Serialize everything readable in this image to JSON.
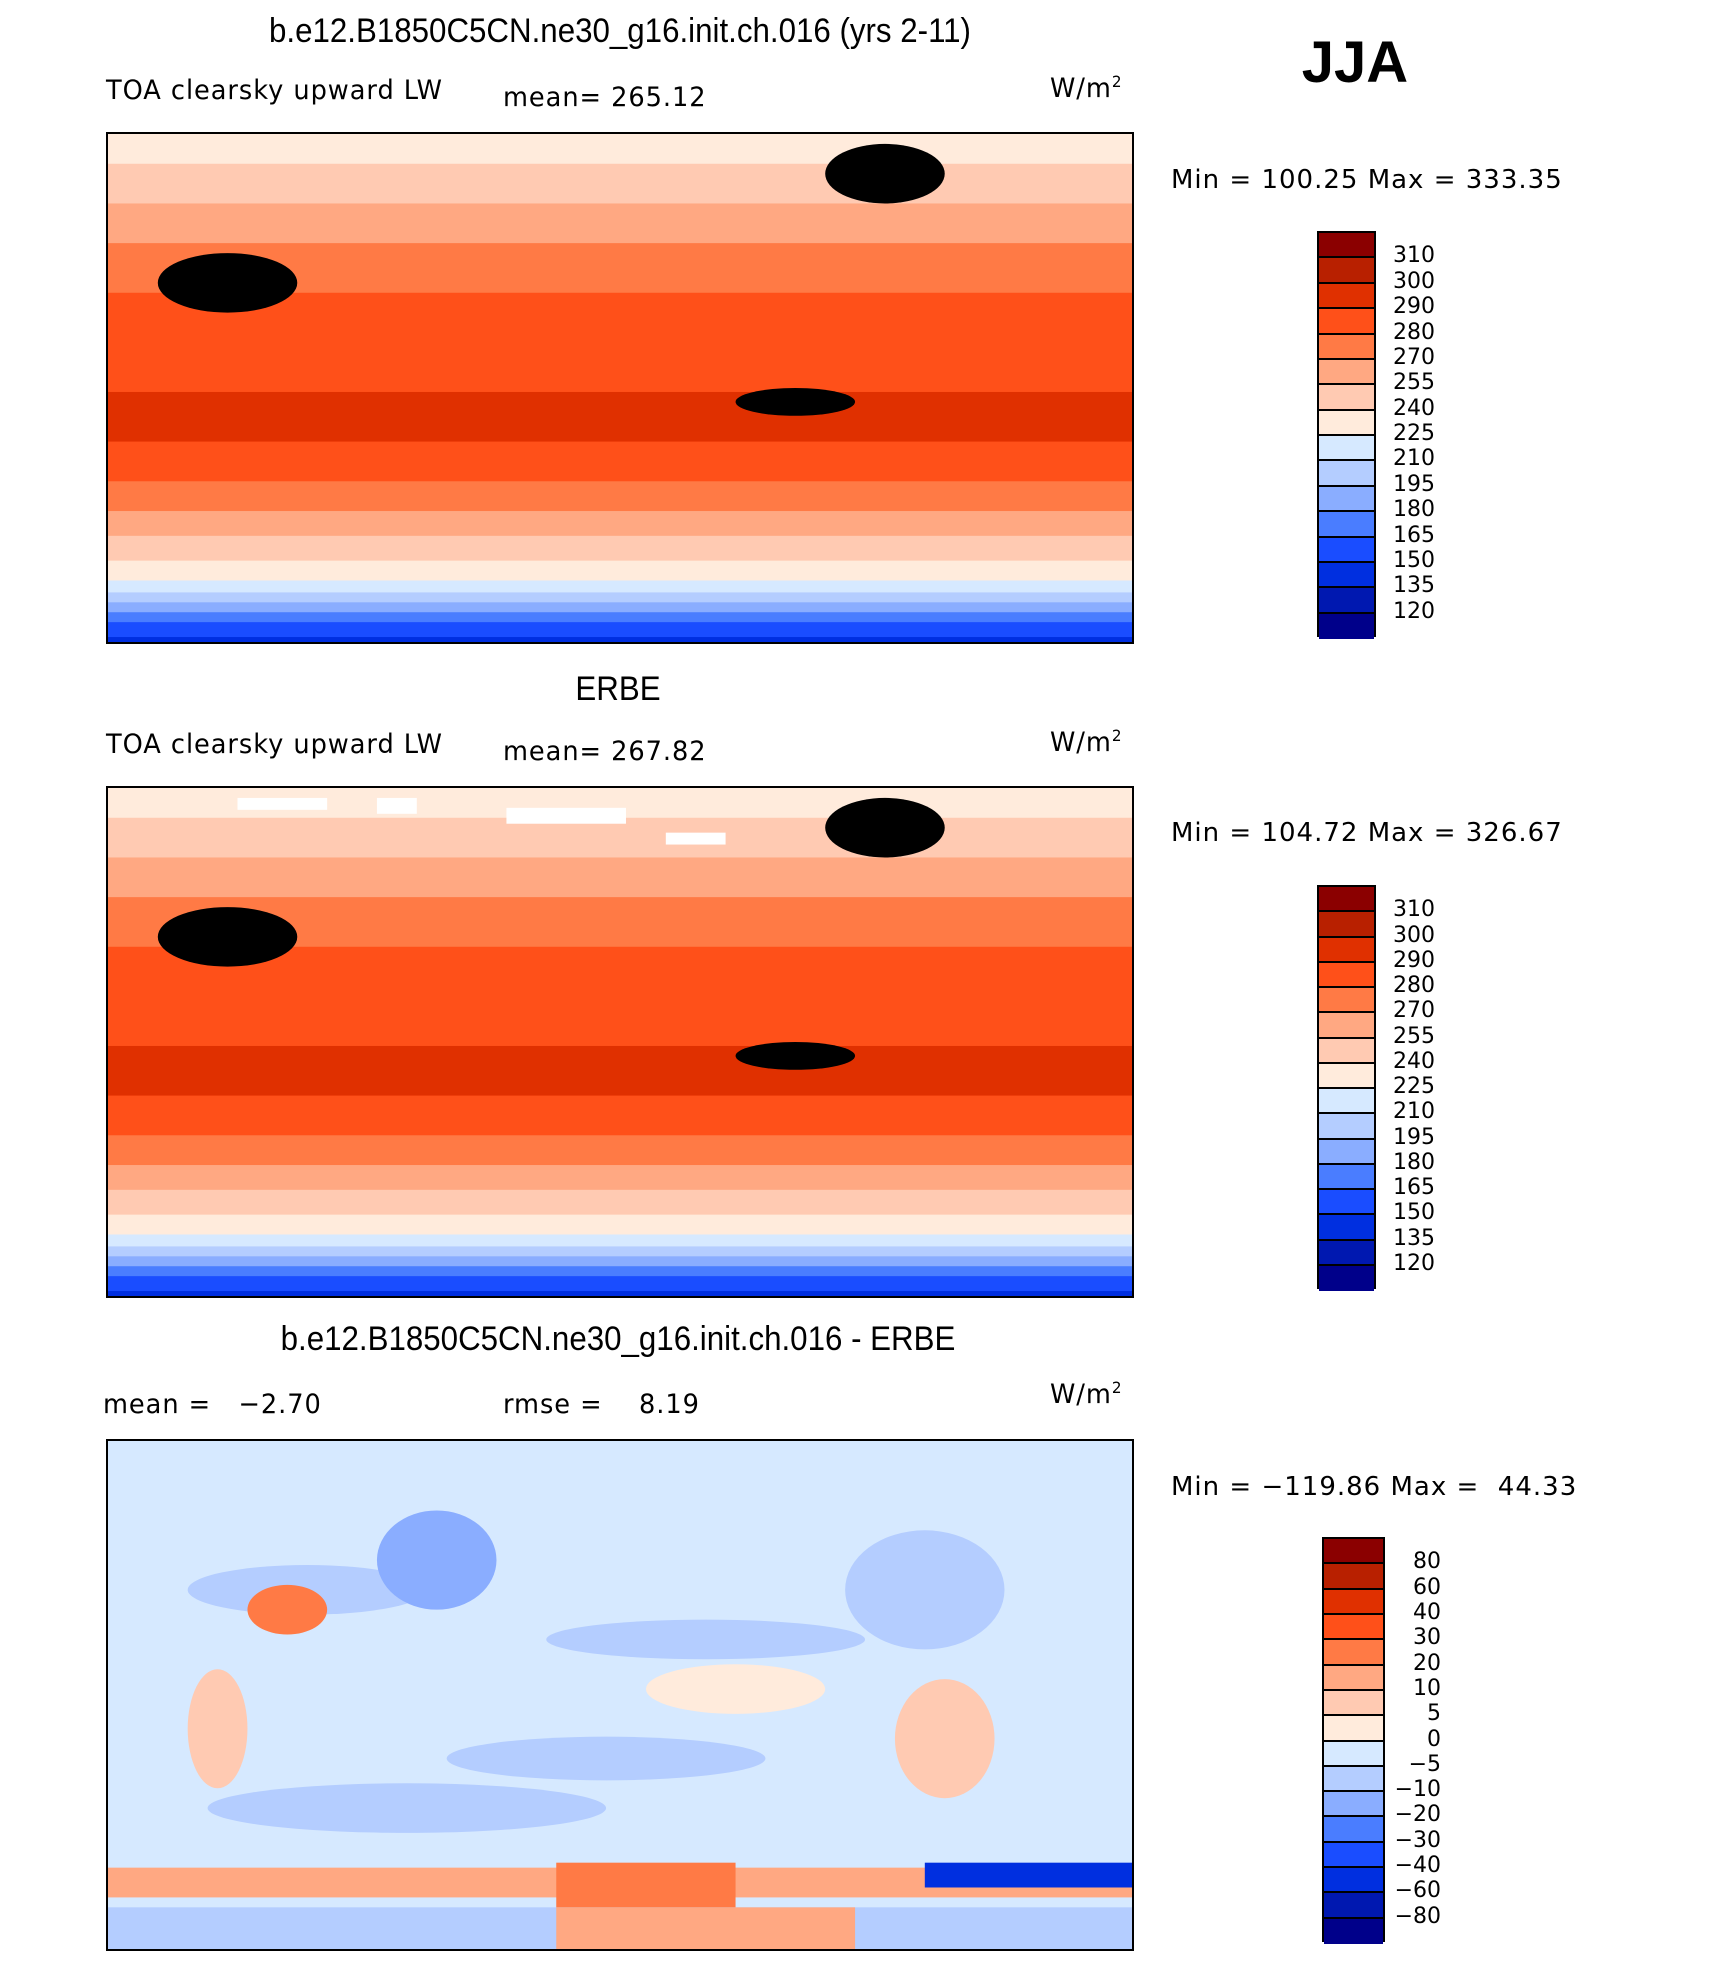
{
  "season": "JJA",
  "units": {
    "base": "W/m",
    "exp": "2"
  },
  "panels": [
    {
      "title": "b.e12.B1850C5CN.ne30_g16.init.ch.016 (yrs 2-11)",
      "variable": "TOA clearsky upward LW",
      "stat": "mean= 265.12",
      "minmax": "Min = 100.25 Max = 333.35"
    },
    {
      "title": "ERBE",
      "variable": "TOA clearsky upward LW",
      "stat": "mean= 267.82",
      "minmax": "Min = 104.72 Max = 326.67"
    },
    {
      "title": "b.e12.B1850C5CN.ne30_g16.init.ch.016 - ERBE",
      "stat_mean": "mean =   −2.70",
      "stat_rmse": "rmse =    8.19",
      "minmax": "Min = −119.86 Max =  44.33"
    }
  ],
  "colorbars": {
    "abs": {
      "levels": [
        "310",
        "300",
        "290",
        "280",
        "270",
        "255",
        "240",
        "225",
        "210",
        "195",
        "180",
        "165",
        "150",
        "135",
        "120"
      ]
    },
    "diff": {
      "levels": [
        "80",
        "60",
        "40",
        "30",
        "20",
        "10",
        "5",
        "0",
        "−5",
        "−10",
        "−20",
        "−30",
        "−40",
        "−60",
        "−80"
      ]
    },
    "colors": [
      "#8b0000",
      "#b82000",
      "#e03000",
      "#ff5019",
      "#ff7a45",
      "#ffa882",
      "#ffcab2",
      "#ffebdc",
      "#d6e9ff",
      "#b4cdff",
      "#8aadff",
      "#4a7dff",
      "#1a4dff",
      "#002fe0",
      "#0018b0",
      "#00008a"
    ]
  }
}
